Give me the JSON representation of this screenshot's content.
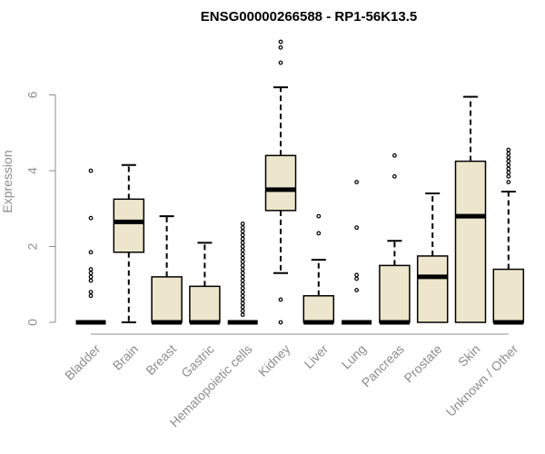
{
  "chart_data": {
    "type": "boxplot",
    "title": "ENSG00000266588 - RP1-56K13.5",
    "ylabel": "Expression",
    "xlabel": "",
    "ylim": [
      0,
      7.5
    ],
    "yticks": [
      0,
      2,
      4,
      6
    ],
    "grid": false,
    "colors": {
      "box_fill": "#ede6cc",
      "stroke": "#000000",
      "axis": "#8c8c8c"
    },
    "categories": [
      "Bladder",
      "Brain",
      "Breast",
      "Gastric",
      "Hematopoietic cells",
      "Kidney",
      "Liver",
      "Lung",
      "Pancreas",
      "Prostate",
      "Skin",
      "Unknown / Other"
    ],
    "boxes": [
      {
        "q1": 0,
        "median": 0,
        "q3": 0,
        "whisker_low": 0,
        "whisker_high": 0,
        "outliers": [
          4.0,
          2.75,
          1.85,
          1.4,
          1.3,
          1.2,
          1.1,
          0.8,
          0.7
        ]
      },
      {
        "q1": 1.85,
        "median": 2.65,
        "q3": 3.25,
        "whisker_low": 0,
        "whisker_high": 4.15,
        "outliers": []
      },
      {
        "q1": 0,
        "median": 0,
        "q3": 1.2,
        "whisker_low": 0,
        "whisker_high": 2.8,
        "outliers": []
      },
      {
        "q1": 0,
        "median": 0,
        "q3": 0.95,
        "whisker_low": 0,
        "whisker_high": 2.1,
        "outliers": []
      },
      {
        "q1": 0,
        "median": 0,
        "q3": 0,
        "whisker_low": 0,
        "whisker_high": 0,
        "outliers": [
          2.6,
          2.5,
          2.4,
          2.3,
          2.2,
          2.1,
          2.0,
          1.9,
          1.8,
          1.7,
          1.6,
          1.5,
          1.4,
          1.3,
          1.2,
          1.1,
          1.0,
          0.9,
          0.8,
          0.7,
          0.6,
          0.5,
          0.4,
          0.3,
          0.2
        ]
      },
      {
        "q1": 2.95,
        "median": 3.5,
        "q3": 4.4,
        "whisker_low": 1.3,
        "whisker_high": 6.2,
        "outliers": [
          7.4,
          7.25,
          6.85,
          0.6,
          0
        ]
      },
      {
        "q1": 0,
        "median": 0,
        "q3": 0.7,
        "whisker_low": 0,
        "whisker_high": 1.65,
        "outliers": [
          2.8,
          2.35
        ]
      },
      {
        "q1": 0,
        "median": 0,
        "q3": 0,
        "whisker_low": 0,
        "whisker_high": 0,
        "outliers": [
          3.7,
          2.5,
          1.25,
          1.15,
          0.85
        ]
      },
      {
        "q1": 0,
        "median": 0,
        "q3": 1.5,
        "whisker_low": 0,
        "whisker_high": 2.15,
        "outliers": [
          4.4,
          3.85
        ]
      },
      {
        "q1": 0,
        "median": 1.2,
        "q3": 1.75,
        "whisker_low": 0,
        "whisker_high": 3.4,
        "outliers": []
      },
      {
        "q1": 0,
        "median": 2.8,
        "q3": 4.25,
        "whisker_low": 0,
        "whisker_high": 5.95,
        "outliers": []
      },
      {
        "q1": 0,
        "median": 0,
        "q3": 1.4,
        "whisker_low": 0,
        "whisker_high": 3.45,
        "outliers": [
          4.55,
          4.45,
          4.35,
          4.25,
          4.15,
          4.05,
          3.95,
          3.85,
          3.7
        ]
      }
    ]
  }
}
